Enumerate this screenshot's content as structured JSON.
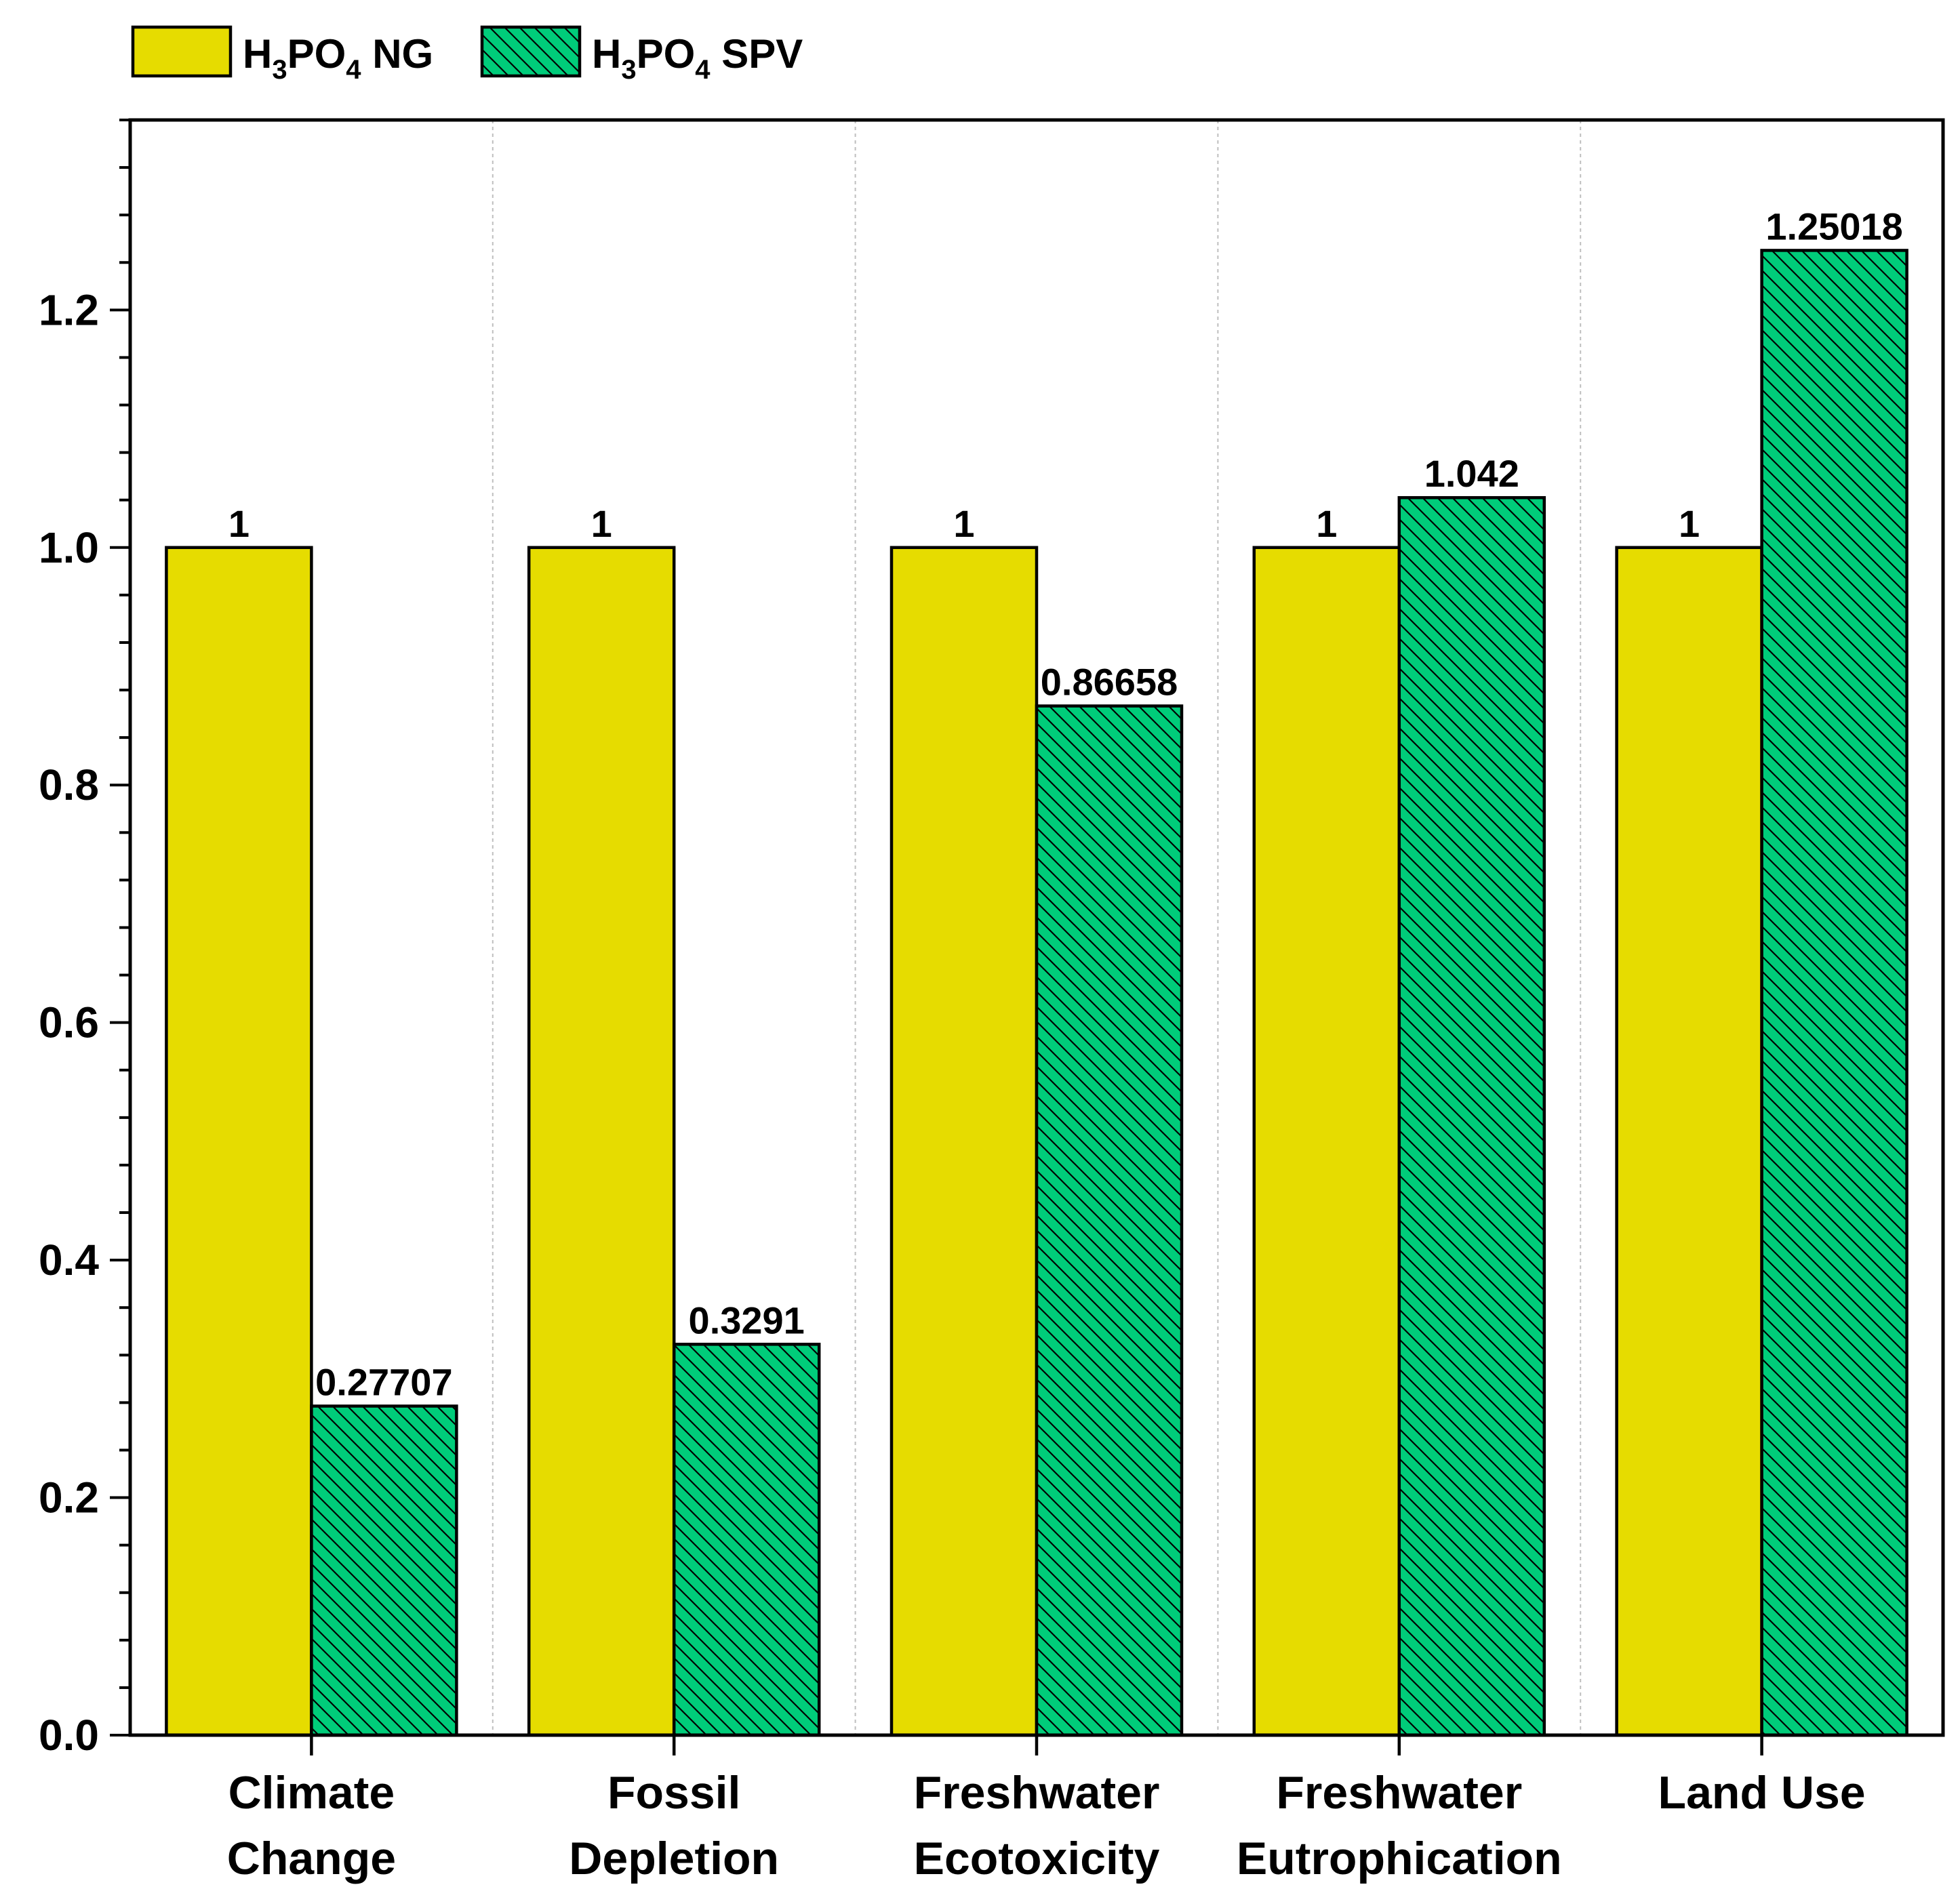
{
  "chart_data": {
    "type": "bar",
    "title": "",
    "xlabel": "",
    "ylabel": "",
    "categories": [
      [
        "Climate",
        "Change"
      ],
      [
        "Fossil",
        "Depletion"
      ],
      [
        "Freshwater",
        "Ecotoxicity"
      ],
      [
        "Freshwater",
        "Eutrophication"
      ],
      [
        "Land Use"
      ]
    ],
    "series": [
      {
        "name": "H3PO4 NG",
        "legend_main": "H",
        "legend_parts": [
          "H",
          "3",
          "PO",
          "4",
          " NG"
        ],
        "color": "#e6dc00",
        "pattern": "solid",
        "values": [
          1,
          1,
          1,
          1,
          1
        ],
        "labels": [
          "1",
          "1",
          "1",
          "1",
          "1"
        ]
      },
      {
        "name": "H3PO4 SPV",
        "legend_parts": [
          "H",
          "3",
          "PO",
          "4",
          " SPV"
        ],
        "color": "#00cc7a",
        "pattern": "hatch",
        "values": [
          0.27707,
          0.3291,
          0.86658,
          1.042,
          1.25018
        ],
        "labels": [
          "0.27707",
          "0.3291",
          "0.86658",
          "1.042",
          "1.25018"
        ]
      }
    ],
    "ylim": [
      0,
      1.36
    ],
    "yticks": [
      0.0,
      0.2,
      0.4,
      0.6,
      0.8,
      1.0,
      1.2
    ],
    "ytick_labels": [
      "0.0",
      "0.2",
      "0.4",
      "0.6",
      "0.8",
      "1.0",
      "1.2"
    ],
    "grid": "vertical-dotted-separators",
    "legend_position": "top-left"
  }
}
